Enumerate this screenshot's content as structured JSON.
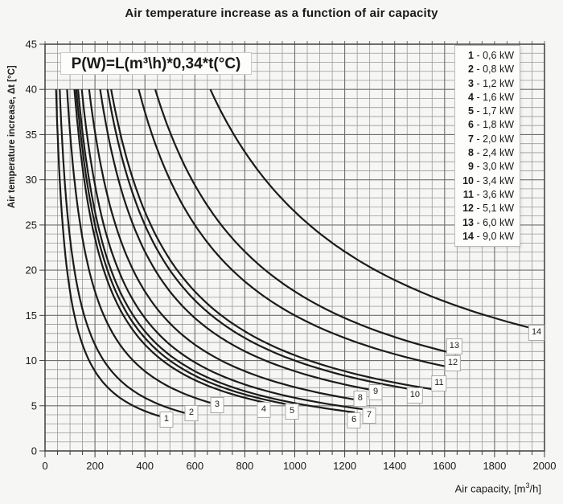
{
  "title": "Air temperature increase as a function of air capacity",
  "formula": {
    "text": "P(W)=L(m³\\h)*0,34*t(°C)"
  },
  "chart_data": {
    "type": "line",
    "title": "Air temperature increase as a function of air capacity",
    "ylabel": "Air temperature increase, Δt [°C]",
    "xlabel_parts": {
      "prefix": "Air capacity, [m",
      "sup": "3",
      "suffix": "/h]"
    },
    "xlim": [
      0,
      2000
    ],
    "ylim": [
      0,
      45
    ],
    "x_tick_step": 200,
    "y_tick_step": 5,
    "x_minor_step": 50,
    "y_minor_step": 1,
    "x_ticks": [
      "0",
      "200",
      "400",
      "600",
      "800",
      "1000",
      "1200",
      "1400",
      "1600",
      "1800",
      "2000"
    ],
    "y_ticks": [
      "0",
      "5",
      "10",
      "15",
      "20",
      "25",
      "30",
      "35",
      "40",
      "45"
    ],
    "grid": true,
    "legend_position": "top-right",
    "formula_constant": 0.34,
    "curve_t_start": 40,
    "series": [
      {
        "n": "1",
        "kw": 0.6,
        "L_end": 490,
        "label": {
          "L": 486,
          "t": 3.5
        }
      },
      {
        "n": "2",
        "kw": 0.8,
        "L_end": 590,
        "label": {
          "L": 586,
          "t": 4.2
        }
      },
      {
        "n": "3",
        "kw": 1.2,
        "L_end": 690,
        "label": {
          "L": 689,
          "t": 5.1
        }
      },
      {
        "n": "4",
        "kw": 1.6,
        "L_end": 880,
        "label": {
          "L": 876,
          "t": 4.5
        }
      },
      {
        "n": "5",
        "kw": 1.7,
        "L_end": 990,
        "label": {
          "L": 989,
          "t": 4.4
        }
      },
      {
        "n": "6",
        "kw": 1.8,
        "L_end": 1240,
        "label": {
          "L": 1237,
          "t": 3.4
        }
      },
      {
        "n": "7",
        "kw": 2.0,
        "L_end": 1300,
        "label": {
          "L": 1298,
          "t": 3.9
        }
      },
      {
        "n": "8",
        "kw": 2.4,
        "L_end": 1265,
        "label": {
          "L": 1262,
          "t": 5.8
        }
      },
      {
        "n": "9",
        "kw": 3.0,
        "L_end": 1325,
        "label": {
          "L": 1324,
          "t": 6.5
        }
      },
      {
        "n": "10",
        "kw": 3.4,
        "L_end": 1485,
        "label": {
          "L": 1481,
          "t": 6.1
        }
      },
      {
        "n": "11",
        "kw": 3.6,
        "L_end": 1580,
        "label": {
          "L": 1578,
          "t": 7.5
        }
      },
      {
        "n": "12",
        "kw": 5.1,
        "L_end": 1635,
        "label": {
          "L": 1633,
          "t": 9.7
        }
      },
      {
        "n": "13",
        "kw": 6.0,
        "L_end": 1645,
        "label": {
          "L": 1639,
          "t": 11.6
        }
      },
      {
        "n": "14",
        "kw": 9.0,
        "L_end": 1970,
        "label": {
          "L": 1968,
          "t": 13.1
        }
      }
    ],
    "legend": [
      {
        "n": "1",
        "value": "0,6",
        "unit": "kW"
      },
      {
        "n": "2",
        "value": "0,8",
        "unit": "kW"
      },
      {
        "n": "3",
        "value": "1,2",
        "unit": "kW"
      },
      {
        "n": "4",
        "value": "1,6",
        "unit": "kW"
      },
      {
        "n": "5",
        "value": "1,7",
        "unit": "kW"
      },
      {
        "n": "6",
        "value": "1,8",
        "unit": "kW"
      },
      {
        "n": "7",
        "value": "2,0",
        "unit": "kW"
      },
      {
        "n": "8",
        "value": "2,4",
        "unit": "kW"
      },
      {
        "n": "9",
        "value": "3,0",
        "unit": "kW"
      },
      {
        "n": "10",
        "value": "3,4",
        "unit": "kW"
      },
      {
        "n": "11",
        "value": "3,6",
        "unit": "kW"
      },
      {
        "n": "12",
        "value": "5,1",
        "unit": "kW"
      },
      {
        "n": "13",
        "value": "6,0",
        "unit": "kW"
      },
      {
        "n": "14",
        "value": "9,0",
        "unit": "kW"
      }
    ]
  },
  "colors": {
    "background": "#f6f6f4",
    "grid_minor": "#9a9a9a",
    "grid_major": "#6e6e6e",
    "border": "#3f3f3f",
    "curve": "#1b1b1b",
    "text": "#1a1a1a"
  }
}
